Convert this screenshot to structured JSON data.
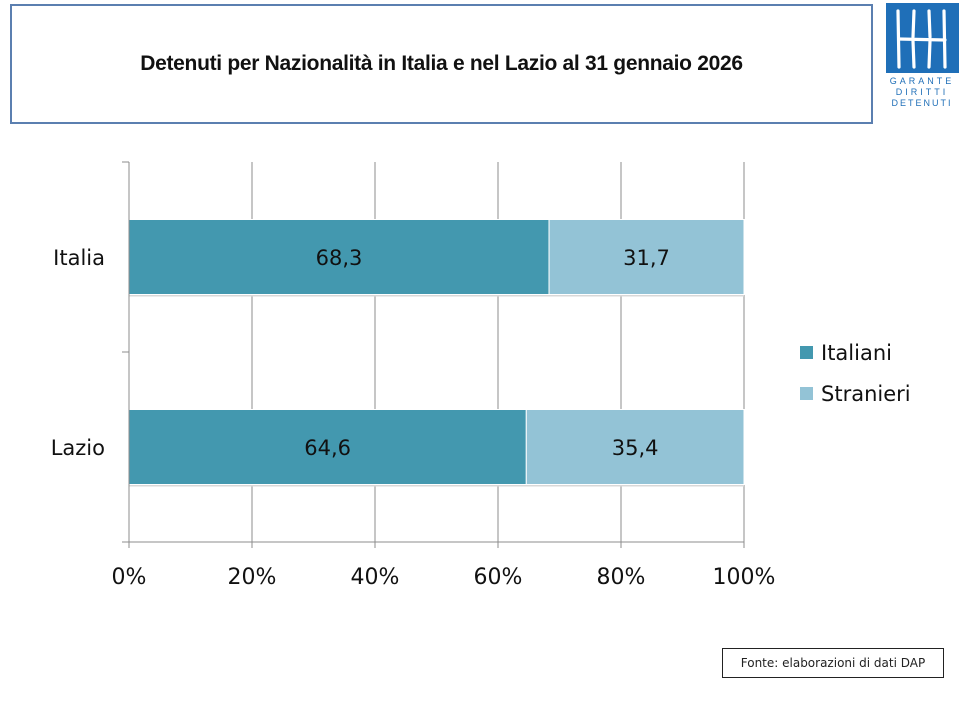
{
  "header": {
    "title": "Detenuti per Nazionalità in Italia e nel Lazio al 31 gennaio 2026"
  },
  "logo": {
    "lines": [
      "GARANTE",
      "DIRITTI",
      "DETENUTI"
    ],
    "color": "#1f6fb8"
  },
  "source": "Fonte: elaborazioni di dati DAP",
  "chart_data": {
    "type": "bar",
    "orientation": "horizontal",
    "stacked": "percent",
    "title": "Detenuti per Nazionalità in Italia e nel Lazio al 31 gennaio 2026",
    "categories": [
      "Italia",
      "Lazio"
    ],
    "series": [
      {
        "name": "Italiani",
        "values": [
          68.3,
          64.6
        ],
        "labels": [
          "68,3",
          "64,6"
        ],
        "color": "#4398af"
      },
      {
        "name": "Stranieri",
        "values": [
          31.7,
          35.4
        ],
        "labels": [
          "31,7",
          "35,4"
        ],
        "color": "#93c3d6"
      }
    ],
    "xlim": [
      0,
      100
    ],
    "xticks": [
      0,
      20,
      40,
      60,
      80,
      100
    ],
    "xtick_labels": [
      "0%",
      "20%",
      "40%",
      "60%",
      "80%",
      "100%"
    ],
    "xlabel": "",
    "ylabel": "",
    "grid": true,
    "legend": "right"
  }
}
